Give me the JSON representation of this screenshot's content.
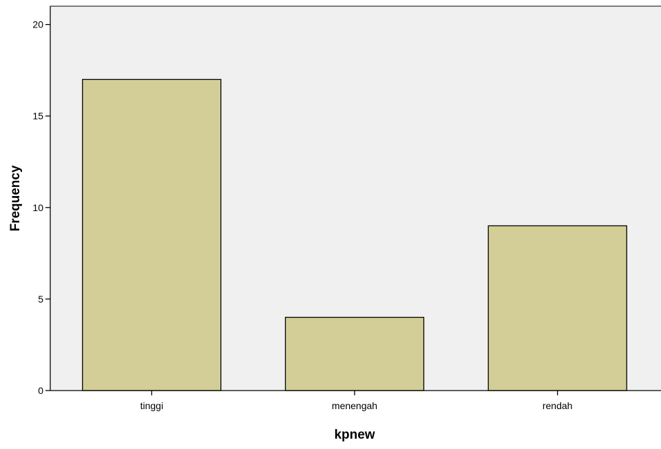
{
  "chart_data": {
    "type": "bar",
    "categories": [
      "tinggi",
      "menengah",
      "rendah"
    ],
    "values": [
      17,
      4,
      9
    ],
    "xlabel": "kpnew",
    "ylabel": "Frequency",
    "ylim": [
      0,
      21
    ],
    "yticks": [
      0,
      5,
      10,
      15,
      20
    ],
    "grid": false,
    "legend": "none",
    "colors": {
      "plot_background": "#f0f0f0",
      "bar_fill": "#d3ce97",
      "bar_stroke": "#000000",
      "axis": "#000000"
    }
  }
}
